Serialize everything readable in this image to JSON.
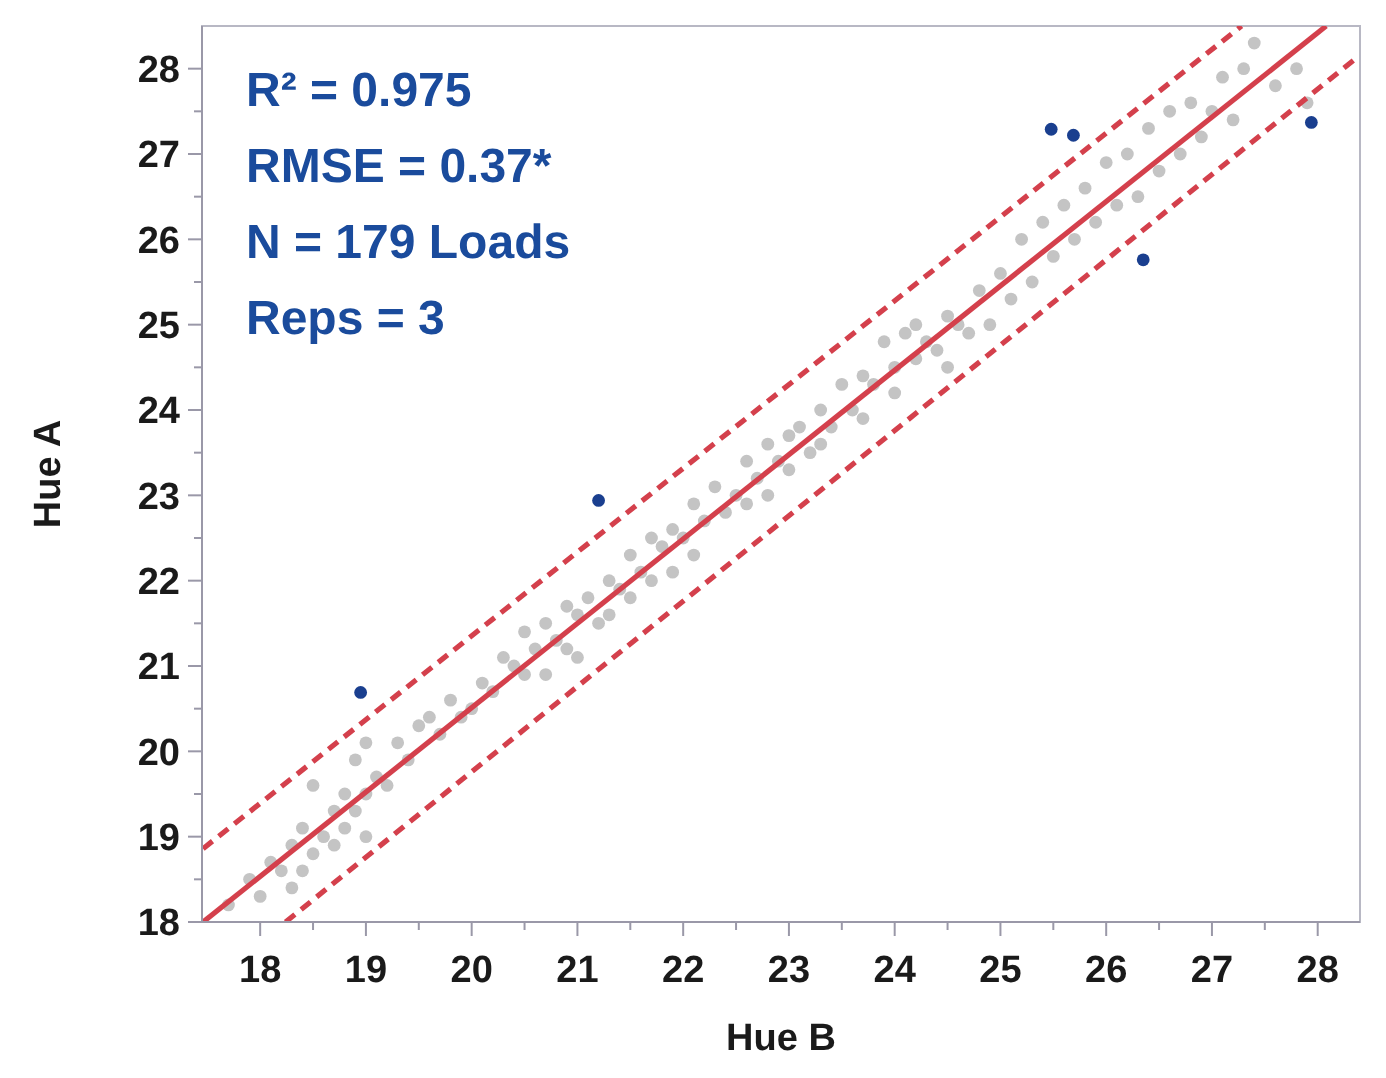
{
  "chart_data": {
    "type": "scatter",
    "xlabel": "Hue B",
    "ylabel": "Hue A",
    "xlim": [
      17.45,
      28.4
    ],
    "ylim": [
      18,
      28.5
    ],
    "xticks": [
      18,
      {
        "value": 18.5,
        "label": null
      },
      19,
      {
        "value": 19.5,
        "label": null
      },
      20,
      {
        "value": 20.5,
        "label": null
      },
      21,
      {
        "value": 21.5,
        "label": null
      },
      22,
      {
        "value": 22.5,
        "label": null
      },
      23,
      {
        "value": 23.5,
        "label": null
      },
      24,
      {
        "value": 24.5,
        "label": null
      },
      25,
      {
        "value": 25.5,
        "label": null
      },
      26,
      {
        "value": 26.5,
        "label": null
      },
      27,
      {
        "value": 27.5,
        "label": null
      },
      28
    ],
    "yticks": [
      18,
      {
        "value": 18.5,
        "label": null
      },
      19,
      {
        "value": 19.5,
        "label": null
      },
      20,
      {
        "value": 20.5,
        "label": null
      },
      21,
      {
        "value": 21.5,
        "label": null
      },
      22,
      {
        "value": 22.5,
        "label": null
      },
      23,
      {
        "value": 23.5,
        "label": null
      },
      24,
      {
        "value": 24.5,
        "label": null
      },
      25,
      {
        "value": 25.5,
        "label": null
      },
      26,
      {
        "value": 26.5,
        "label": null
      },
      27,
      {
        "value": 27.5,
        "label": null
      },
      28
    ],
    "grid": false,
    "annotations": [
      "R² = 0.975",
      "RMSE = 0.37*",
      "N = 179 Loads",
      "Reps = 3"
    ],
    "series": [
      {
        "marker": "circle",
        "color": "#c4c4c4",
        "x": [
          17.7,
          17.9,
          18.0,
          18.1,
          18.2,
          18.3,
          18.3,
          18.4,
          18.4,
          18.5,
          18.5,
          18.6,
          18.7,
          18.7,
          18.8,
          18.8,
          18.9,
          18.9,
          19.0,
          19.0,
          19.0,
          19.1,
          19.2,
          19.3,
          19.4,
          19.5,
          19.6,
          19.7,
          19.8,
          19.9,
          20.0,
          20.1,
          20.2,
          20.3,
          20.4,
          20.5,
          20.5,
          20.6,
          20.7,
          20.7,
          20.8,
          20.9,
          20.9,
          21.0,
          21.0,
          21.1,
          21.2,
          21.3,
          21.3,
          21.4,
          21.5,
          21.5,
          21.6,
          21.7,
          21.7,
          21.8,
          21.9,
          21.9,
          22.0,
          22.1,
          22.1,
          22.2,
          22.3,
          22.4,
          22.5,
          22.6,
          22.6,
          22.7,
          22.8,
          22.8,
          22.9,
          23.0,
          23.0,
          23.1,
          23.2,
          23.3,
          23.3,
          23.4,
          23.5,
          23.6,
          23.7,
          23.7,
          23.8,
          23.9,
          24.0,
          24.0,
          24.1,
          24.2,
          24.2,
          24.3,
          24.4,
          24.5,
          24.5,
          24.6,
          24.7,
          24.8,
          24.9,
          25.0,
          25.1,
          25.2,
          25.3,
          25.4,
          25.5,
          25.6,
          25.7,
          25.8,
          25.9,
          26.0,
          26.1,
          26.2,
          26.3,
          26.4,
          26.5,
          26.6,
          26.7,
          26.8,
          26.9,
          27.0,
          27.1,
          27.2,
          27.3,
          27.4,
          27.6,
          27.8,
          27.9
        ],
        "values": [
          18.2,
          18.5,
          18.3,
          18.7,
          18.6,
          18.9,
          18.4,
          19.1,
          18.6,
          19.6,
          18.8,
          19.0,
          19.3,
          18.9,
          19.5,
          19.1,
          19.9,
          19.3,
          19.5,
          19.0,
          20.1,
          19.7,
          19.6,
          20.1,
          19.9,
          20.3,
          20.4,
          20.2,
          20.6,
          20.4,
          20.5,
          20.8,
          20.7,
          21.1,
          21.0,
          21.4,
          20.9,
          21.2,
          21.5,
          20.9,
          21.3,
          21.7,
          21.2,
          21.6,
          21.1,
          21.8,
          21.5,
          22.0,
          21.6,
          21.9,
          22.3,
          21.8,
          22.1,
          22.5,
          22.0,
          22.4,
          22.6,
          22.1,
          22.5,
          22.9,
          22.3,
          22.7,
          23.1,
          22.8,
          23.0,
          23.4,
          22.9,
          23.2,
          23.6,
          23.0,
          23.4,
          23.7,
          23.3,
          23.8,
          23.5,
          24.0,
          23.6,
          23.8,
          24.3,
          24.0,
          24.4,
          23.9,
          24.3,
          24.8,
          24.5,
          24.2,
          24.9,
          24.6,
          25.0,
          24.8,
          24.7,
          25.1,
          24.5,
          25.0,
          24.9,
          25.4,
          25.0,
          25.6,
          25.3,
          26.0,
          25.5,
          26.2,
          25.8,
          26.4,
          26.0,
          26.6,
          26.2,
          26.9,
          26.4,
          27.0,
          26.5,
          27.3,
          26.8,
          27.5,
          27.0,
          27.6,
          27.2,
          27.5,
          27.9,
          27.4,
          28.0,
          28.3,
          27.8,
          28.0,
          27.6
        ]
      },
      {
        "marker": "circle",
        "color": "#1a3f8f",
        "x": [
          18.95,
          21.2,
          25.48,
          25.69,
          26.35,
          27.94
        ],
        "values": [
          20.69,
          22.94,
          27.29,
          27.22,
          25.76,
          27.37
        ]
      },
      {
        "type": "line",
        "color": "#d4404c",
        "marker": "none",
        "line_style": "solid",
        "x": [
          17.46,
          28.08
        ],
        "values": [
          18,
          28.5
        ]
      },
      {
        "type": "line",
        "color": "#d4404c",
        "marker": "none",
        "line_style": "dashed",
        "x": [
          17.46,
          27.28
        ],
        "values": [
          18.86,
          28.5
        ]
      },
      {
        "type": "line",
        "color": "#d4404c",
        "marker": "none",
        "line_style": "dashed",
        "x": [
          18.24,
          28.37
        ],
        "values": [
          18,
          28.13
        ]
      }
    ]
  }
}
